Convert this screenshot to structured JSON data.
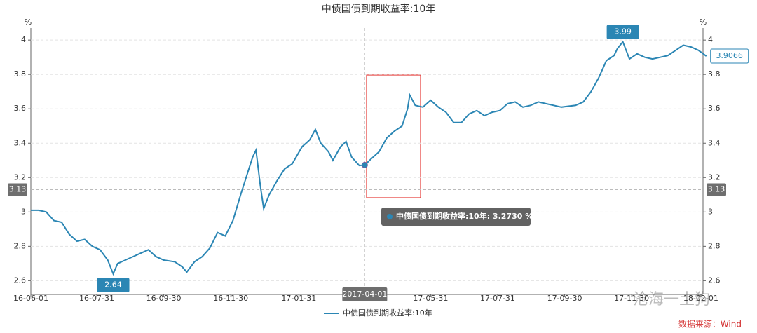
{
  "chart_data": {
    "type": "line",
    "title": "中债国债到期收益率:10年",
    "ylabel": "%",
    "y2label": "%",
    "x": [
      "16-06-01",
      "16-06-08",
      "16-06-15",
      "16-06-22",
      "16-06-29",
      "16-07-06",
      "16-07-13",
      "16-07-20",
      "16-07-27",
      "16-08-03",
      "16-08-10",
      "16-08-15",
      "16-08-19",
      "16-08-26",
      "16-09-02",
      "16-09-09",
      "16-09-16",
      "16-09-23",
      "16-09-30",
      "16-10-10",
      "16-10-17",
      "16-10-21",
      "16-10-28",
      "16-11-04",
      "16-11-11",
      "16-11-18",
      "16-11-25",
      "16-12-02",
      "16-12-09",
      "16-12-14",
      "16-12-20",
      "16-12-23",
      "16-12-27",
      "16-12-30",
      "17-01-04",
      "17-01-11",
      "17-01-18",
      "17-01-25",
      "17-02-03",
      "17-02-10",
      "17-02-15",
      "17-02-20",
      "17-02-27",
      "17-03-03",
      "17-03-10",
      "17-03-15",
      "17-03-20",
      "17-03-27",
      "17-04-01",
      "17-04-07",
      "17-04-14",
      "17-04-21",
      "17-04-28",
      "17-05-05",
      "17-05-10",
      "17-05-12",
      "17-05-17",
      "17-05-24",
      "17-05-31",
      "17-06-07",
      "17-06-14",
      "17-06-21",
      "17-06-28",
      "17-07-05",
      "17-07-12",
      "17-07-19",
      "17-07-26",
      "17-08-02",
      "17-08-09",
      "17-08-16",
      "17-08-23",
      "17-08-30",
      "17-09-06",
      "17-09-13",
      "17-09-20",
      "17-09-27",
      "17-10-10",
      "17-10-17",
      "17-10-24",
      "17-10-31",
      "17-11-07",
      "17-11-14",
      "17-11-17",
      "17-11-22",
      "17-11-28",
      "17-12-05",
      "17-12-12",
      "17-12-19",
      "17-12-26",
      "18-01-02",
      "18-01-09",
      "18-01-16",
      "18-01-23",
      "18-01-30",
      "18-02-06"
    ],
    "series": [
      {
        "name": "中债国债到期收益率:10年",
        "color": "#2b86b4",
        "values": [
          3.01,
          3.01,
          3.0,
          2.95,
          2.94,
          2.87,
          2.83,
          2.84,
          2.8,
          2.78,
          2.72,
          2.64,
          2.7,
          2.72,
          2.74,
          2.76,
          2.78,
          2.74,
          2.72,
          2.71,
          2.68,
          2.65,
          2.71,
          2.74,
          2.79,
          2.88,
          2.86,
          2.95,
          3.1,
          3.2,
          3.32,
          3.36,
          3.15,
          3.02,
          3.1,
          3.18,
          3.25,
          3.28,
          3.38,
          3.42,
          3.48,
          3.4,
          3.35,
          3.3,
          3.38,
          3.41,
          3.32,
          3.27,
          3.273,
          3.31,
          3.35,
          3.43,
          3.47,
          3.5,
          3.6,
          3.68,
          3.62,
          3.61,
          3.65,
          3.61,
          3.58,
          3.52,
          3.52,
          3.57,
          3.59,
          3.56,
          3.58,
          3.59,
          3.63,
          3.64,
          3.61,
          3.62,
          3.64,
          3.63,
          3.62,
          3.61,
          3.62,
          3.64,
          3.7,
          3.78,
          3.88,
          3.91,
          3.95,
          3.99,
          3.89,
          3.92,
          3.9,
          3.89,
          3.9,
          3.91,
          3.94,
          3.97,
          3.96,
          3.94,
          3.9066
        ]
      }
    ],
    "xlim": [
      "16-06-01",
      "18-02-03"
    ],
    "xticks": [
      "16-06-01",
      "16-07-31",
      "16-09-30",
      "16-11-30",
      "17-01-31",
      "17-05-31",
      "17-07-31",
      "17-09-30",
      "17-11-30",
      "18-02-01"
    ],
    "ylim": [
      2.52,
      4.07
    ],
    "yticks": [
      2.6,
      2.8,
      3,
      3.2,
      3.4,
      3.6,
      3.8,
      4
    ],
    "grid": true,
    "max_value": 3.99,
    "min_value": 2.64,
    "last_value": 3.9066,
    "crosshair": {
      "x_label": "2017-04-01",
      "value": 3.13
    },
    "tooltip": "中债国债到期收益率:10年: 3.2730 %",
    "source": "数据来源：Wind",
    "watermark": "沧海一土狗"
  }
}
